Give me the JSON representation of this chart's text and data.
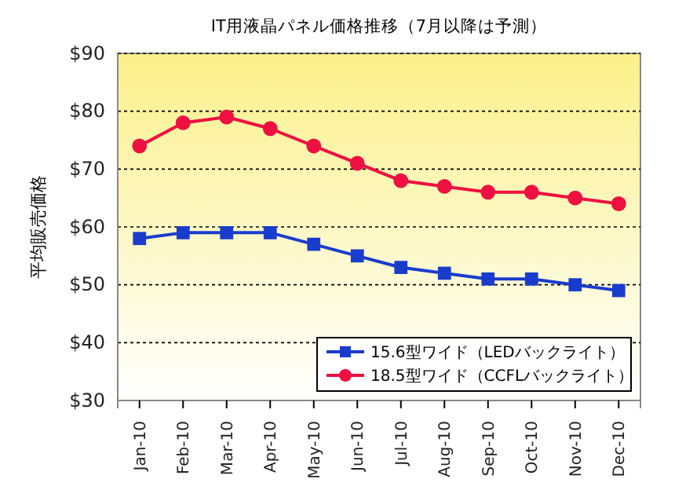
{
  "chart_data": {
    "type": "line",
    "title": "IT用液晶パネル価格推移（7月以降は予測）",
    "ylabel": "平均販売価格",
    "categories": [
      "Jan-10",
      "Feb-10",
      "Mar-10",
      "Apr-10",
      "May-10",
      "Jun-10",
      "Jul-10",
      "Aug-10",
      "Sep-10",
      "Oct-10",
      "Nov-10",
      "Dec-10"
    ],
    "series": [
      {
        "name": "15.6型ワイド（LEDバックライト）",
        "color": "#1a3ccc",
        "marker": "square",
        "values": [
          58,
          59,
          59,
          59,
          57,
          55,
          53,
          52,
          51,
          51,
          50,
          49
        ]
      },
      {
        "name": "18.5型ワイド（CCFLバックライト）",
        "color": "#ee1040",
        "marker": "circle",
        "values": [
          74,
          78,
          79,
          77,
          74,
          71,
          68,
          67,
          66,
          66,
          65,
          64
        ]
      }
    ],
    "ylim": [
      30,
      90
    ],
    "yticks": [
      {
        "value": 30,
        "label": "$30"
      },
      {
        "value": 40,
        "label": "$40"
      },
      {
        "value": 50,
        "label": "$50"
      },
      {
        "value": 60,
        "label": "$60"
      },
      {
        "value": 70,
        "label": "$70"
      },
      {
        "value": 80,
        "label": "$80"
      },
      {
        "value": 90,
        "label": "$90"
      }
    ],
    "grid": "y",
    "legend": "bottom right"
  }
}
